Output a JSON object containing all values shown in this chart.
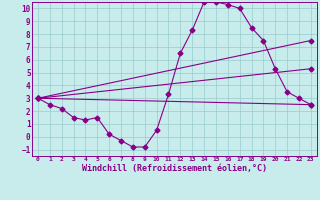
{
  "bg_color": "#c8ecec",
  "line_color": "#880088",
  "grid_color": "#99cccc",
  "xlabel": "Windchill (Refroidissement éolien,°C)",
  "xlabel_color": "#880088",
  "ylim": [
    -1.5,
    10.5
  ],
  "xlim": [
    -0.5,
    23.5
  ],
  "yticks": [
    -1,
    0,
    1,
    2,
    3,
    4,
    5,
    6,
    7,
    8,
    9,
    10
  ],
  "xticks": [
    0,
    1,
    2,
    3,
    4,
    5,
    6,
    7,
    8,
    9,
    10,
    11,
    12,
    13,
    14,
    15,
    16,
    17,
    18,
    19,
    20,
    21,
    22,
    23
  ],
  "series1_x": [
    0,
    1,
    2,
    3,
    4,
    5,
    6,
    7,
    8,
    9,
    10,
    11,
    12,
    13,
    14,
    15,
    16,
    17,
    18,
    19,
    20,
    21,
    22,
    23
  ],
  "series1_y": [
    3.0,
    2.5,
    2.2,
    1.5,
    1.3,
    1.5,
    0.2,
    -0.3,
    -0.8,
    -0.8,
    0.5,
    3.3,
    6.5,
    8.3,
    10.5,
    10.5,
    10.3,
    10.0,
    8.5,
    7.5,
    5.3,
    3.5,
    3.0,
    2.5
  ],
  "series2_x": [
    0,
    23
  ],
  "series2_y": [
    3.0,
    5.3
  ],
  "series3_x": [
    0,
    23
  ],
  "series3_y": [
    3.0,
    7.5
  ],
  "series4_x": [
    0,
    23
  ],
  "series4_y": [
    3.0,
    2.5
  ]
}
